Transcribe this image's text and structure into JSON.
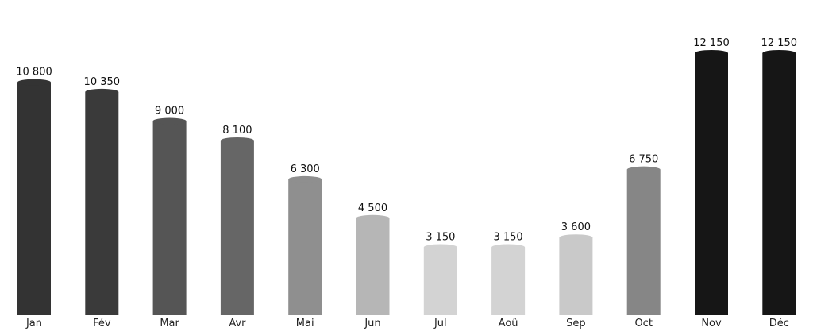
{
  "chart_data": {
    "type": "bar",
    "categories": [
      "Jan",
      "Fév",
      "Mar",
      "Avr",
      "Mai",
      "Jun",
      "Jul",
      "Aoû",
      "Sep",
      "Oct",
      "Nov",
      "Déc"
    ],
    "values": [
      10800,
      10350,
      9000,
      8100,
      6300,
      4500,
      3150,
      3150,
      3600,
      6750,
      12150,
      12150
    ],
    "value_labels": [
      "10 800",
      "10 350",
      "9 000",
      "8 100",
      "6 300",
      "4 500",
      "3 150",
      "3 150",
      "3 600",
      "6 750",
      "12 150",
      "12 150"
    ],
    "colors": [
      "#333333",
      "#3a3a3a",
      "#555555",
      "#666666",
      "#8f8f8f",
      "#b6b6b6",
      "#d3d3d3",
      "#d3d3d3",
      "#c9c9c9",
      "#868686",
      "#161616",
      "#161616"
    ],
    "title": "",
    "xlabel": "",
    "ylabel": "",
    "ylim": [
      0,
      12150
    ],
    "grid": false,
    "legend": "none",
    "bar_style": "cylinder"
  }
}
